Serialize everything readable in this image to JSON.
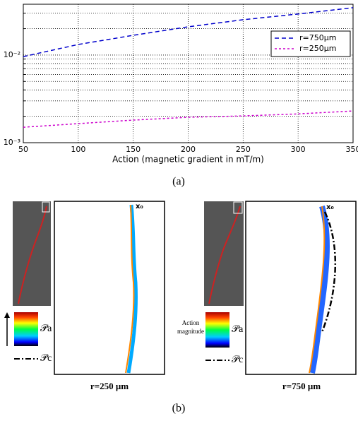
{
  "chart_data": {
    "type": "line",
    "x_label": "Action (magnetic gradient in mT/m)",
    "x": [
      50,
      100,
      150,
      200,
      250,
      300,
      350
    ],
    "series": [
      {
        "name": "r=750μm",
        "color": "#0000cc",
        "dash": "6,4",
        "values": [
          0.0096,
          0.0132,
          0.0168,
          0.021,
          0.0253,
          0.0294,
          0.0347
        ]
      },
      {
        "name": "r=250μm",
        "color": "#cc00cc",
        "dash": "3,3",
        "values": [
          0.0015,
          0.00165,
          0.00181,
          0.00195,
          0.00202,
          0.00213,
          0.0023
        ]
      }
    ],
    "xlim": [
      50,
      350
    ],
    "xticks": [
      50,
      100,
      150,
      200,
      250,
      300,
      350
    ],
    "ylim": [
      0.001,
      0.038
    ],
    "log_y": true,
    "yticks": [
      {
        "value": 0.001,
        "label": "10⁻³"
      },
      {
        "value": 0.01,
        "label": "10⁻²"
      }
    ],
    "minor_yticks": [
      0.002,
      0.003,
      0.004,
      0.005,
      0.006,
      0.007,
      0.008,
      0.009,
      0.02,
      0.03
    ],
    "grid": true,
    "legend": "upper right"
  },
  "caption_a": "(a)",
  "panel_b": {
    "left": {
      "start_label": "x₀",
      "pa_label": "𝒫a",
      "pc_label": "𝒫c",
      "radius_label": "r=250 μm"
    },
    "right": {
      "start_label": "x₀",
      "pa_label": "𝒫a",
      "pc_label": "𝒫c",
      "action_label_1": "Action",
      "action_label_2": "magnitude",
      "radius_label": "r=750 μm"
    },
    "caption": "(b)"
  }
}
